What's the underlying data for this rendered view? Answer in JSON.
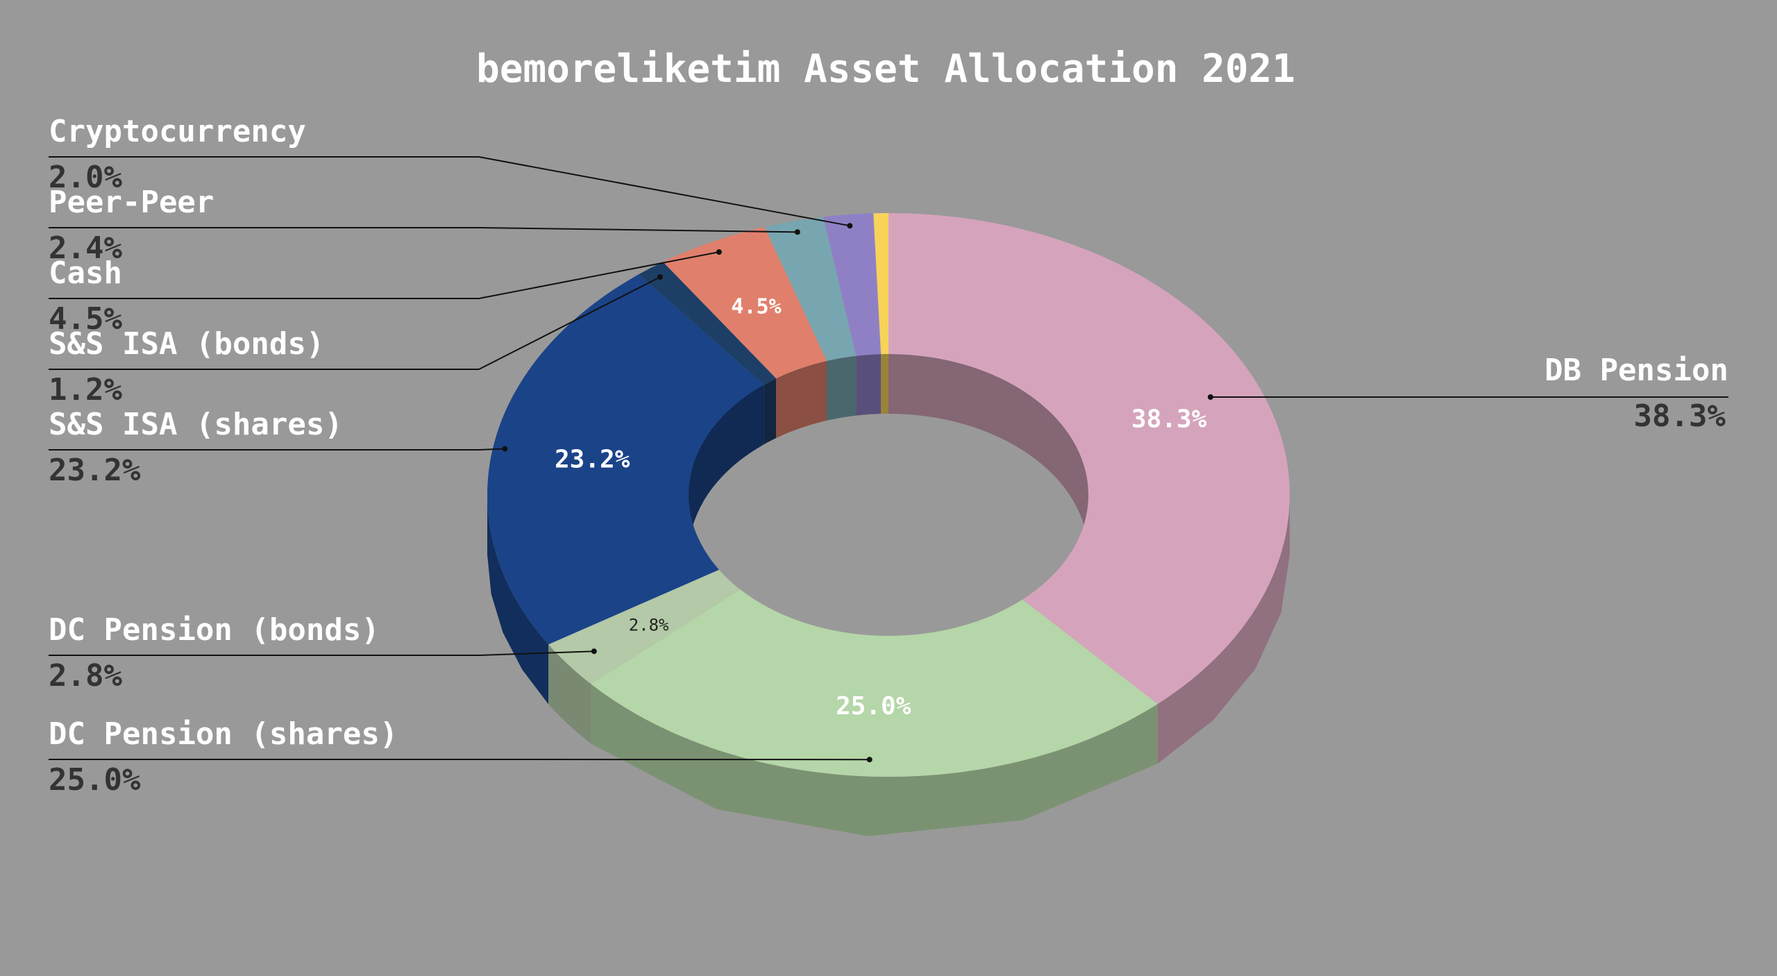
{
  "chart_data": {
    "type": "pie",
    "style": "3d-donut",
    "title": "bemoreliketim Asset Allocation 2021",
    "slices": [
      {
        "label": "DB Pension",
        "value": 38.3,
        "pct_label": "38.3%",
        "color": "#d5a4bc"
      },
      {
        "label": "DC Pension (shares)",
        "value": 25.0,
        "pct_label": "25.0%",
        "color": "#b5d6a8"
      },
      {
        "label": "DC Pension (bonds)",
        "value": 2.8,
        "pct_label": "2.8%",
        "color": "#b3c9a7"
      },
      {
        "label": "S&S ISA (shares)",
        "value": 23.2,
        "pct_label": "23.2%",
        "color": "#1b4388"
      },
      {
        "label": "S&S ISA (bonds)",
        "value": 1.2,
        "pct_label": "1.2%",
        "color": "#1d3f66"
      },
      {
        "label": "Cash",
        "value": 4.5,
        "pct_label": "4.5%",
        "color": "#e0806c"
      },
      {
        "label": "Peer-Peer",
        "value": 2.4,
        "pct_label": "2.4%",
        "color": "#78a6b0"
      },
      {
        "label": "Cryptocurrency",
        "value": 2.0,
        "pct_label": "2.0%",
        "color": "#8f80c6"
      },
      {
        "label": "",
        "value": 0.6,
        "pct_label": "",
        "color": "#f7d35a"
      }
    ],
    "inner_labels": [
      "38.3%",
      "25.0%",
      "2.8%",
      "23.2%",
      "4.5%"
    ],
    "legend": "none"
  }
}
